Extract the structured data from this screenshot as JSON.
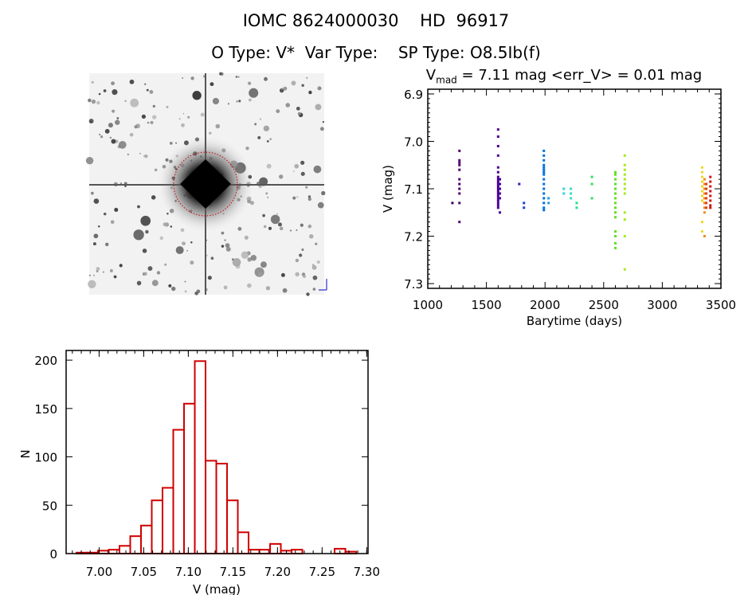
{
  "header": {
    "title": "IOMC 8624000030    HD  96917",
    "subtitle": "O Type: V*  Var Type:    SP Type: O8.5Ib(f)"
  },
  "image_panel": {
    "description_icon": "sky-image"
  },
  "chart_data": [
    {
      "type": "scatter",
      "title_prefix": "V",
      "title_sub": "mad",
      "title_rest": " = 7.11 mag <err_V> = 0.01 mag",
      "xlabel": "Barytime (days)",
      "ylabel": "V (mag)",
      "xlim": [
        1000,
        3500
      ],
      "ylim": [
        7.31,
        6.89
      ],
      "xticks": [
        "1000",
        "1500",
        "2000",
        "2500",
        "3000",
        "3500"
      ],
      "yticks": [
        "6.9",
        "7.0",
        "7.1",
        "7.2",
        "7.3"
      ],
      "grid": false,
      "color_scale": "rainbow by time",
      "groups": [
        {
          "x": 1210,
          "color": "#3a0050",
          "y": [
            7.13
          ]
        },
        {
          "x": 1270,
          "color": "#50006e",
          "y": [
            7.02,
            7.04,
            7.045,
            7.05,
            7.06,
            7.08,
            7.09,
            7.1,
            7.11,
            7.13,
            7.17
          ]
        },
        {
          "x": 1600,
          "color": "#4a0090",
          "y": [
            6.975,
            6.99,
            7.01,
            7.03,
            7.055,
            7.065,
            7.075,
            7.08,
            7.085,
            7.09,
            7.095,
            7.1,
            7.105,
            7.11,
            7.115,
            7.12,
            7.125,
            7.13,
            7.135,
            7.14
          ]
        },
        {
          "x": 1615,
          "color": "#4a00a0",
          "y": [
            7.08,
            7.09,
            7.1,
            7.11,
            7.12,
            7.15
          ]
        },
        {
          "x": 1780,
          "color": "#2a20c0",
          "y": [
            7.09
          ]
        },
        {
          "x": 1820,
          "color": "#2040d0",
          "y": [
            7.13,
            7.14
          ]
        },
        {
          "x": 1990,
          "color": "#0070e0",
          "y": [
            7.02,
            7.03,
            7.04,
            7.05,
            7.055,
            7.06,
            7.065,
            7.07,
            7.08,
            7.09,
            7.1,
            7.11,
            7.12,
            7.13,
            7.14,
            7.145
          ]
        },
        {
          "x": 2030,
          "color": "#20a0e0",
          "y": [
            7.12,
            7.13
          ]
        },
        {
          "x": 2160,
          "color": "#30d0e0",
          "y": [
            7.1,
            7.11
          ]
        },
        {
          "x": 2220,
          "color": "#30e0c8",
          "y": [
            7.1,
            7.11,
            7.12
          ]
        },
        {
          "x": 2270,
          "color": "#20e090",
          "y": [
            7.13,
            7.14
          ]
        },
        {
          "x": 2400,
          "color": "#30e060",
          "y": [
            7.075,
            7.09,
            7.12
          ]
        },
        {
          "x": 2600,
          "color": "#60e020",
          "y": [
            7.065,
            7.07,
            7.08,
            7.09,
            7.1,
            7.11,
            7.12,
            7.13,
            7.14,
            7.15,
            7.16,
            7.19,
            7.2,
            7.215,
            7.225
          ]
        },
        {
          "x": 2680,
          "color": "#a8e820",
          "y": [
            7.03,
            7.05,
            7.06,
            7.07,
            7.08,
            7.09,
            7.1,
            7.11,
            7.15,
            7.165,
            7.2,
            7.27
          ]
        },
        {
          "x": 3340,
          "color": "#f0d820",
          "y": [
            7.055,
            7.065,
            7.075,
            7.085,
            7.095,
            7.105,
            7.115,
            7.125,
            7.17,
            7.19
          ]
        },
        {
          "x": 3360,
          "color": "#f08a20",
          "y": [
            7.08,
            7.09,
            7.1,
            7.11,
            7.12,
            7.13,
            7.14,
            7.15,
            7.2
          ]
        },
        {
          "x": 3375,
          "color": "#e04010",
          "y": [
            7.09,
            7.1,
            7.11,
            7.12,
            7.13,
            7.14
          ]
        },
        {
          "x": 3410,
          "color": "#d01010",
          "y": [
            7.075,
            7.085,
            7.095,
            7.105,
            7.115,
            7.125,
            7.135,
            7.14
          ]
        }
      ]
    },
    {
      "type": "bar",
      "subtype": "histogram",
      "xlabel": "V (mag)",
      "ylabel": "N",
      "xlim": [
        6.963,
        7.3015
      ],
      "ylim": [
        0,
        210
      ],
      "xticks": [
        "7.00",
        "7.05",
        "7.10",
        "7.15",
        "7.20",
        "7.25",
        "7.30"
      ],
      "yticks": [
        "0",
        "50",
        "100",
        "150",
        "200"
      ],
      "bin_start": 6.9746,
      "bin_width": 0.01206,
      "values": [
        1,
        1,
        3,
        4,
        8,
        18,
        29,
        55,
        68,
        128,
        155,
        199,
        96,
        93,
        55,
        22,
        4,
        4,
        10,
        3,
        4,
        0,
        0,
        0,
        5,
        2
      ],
      "color": "#d00000",
      "grid": false
    }
  ]
}
